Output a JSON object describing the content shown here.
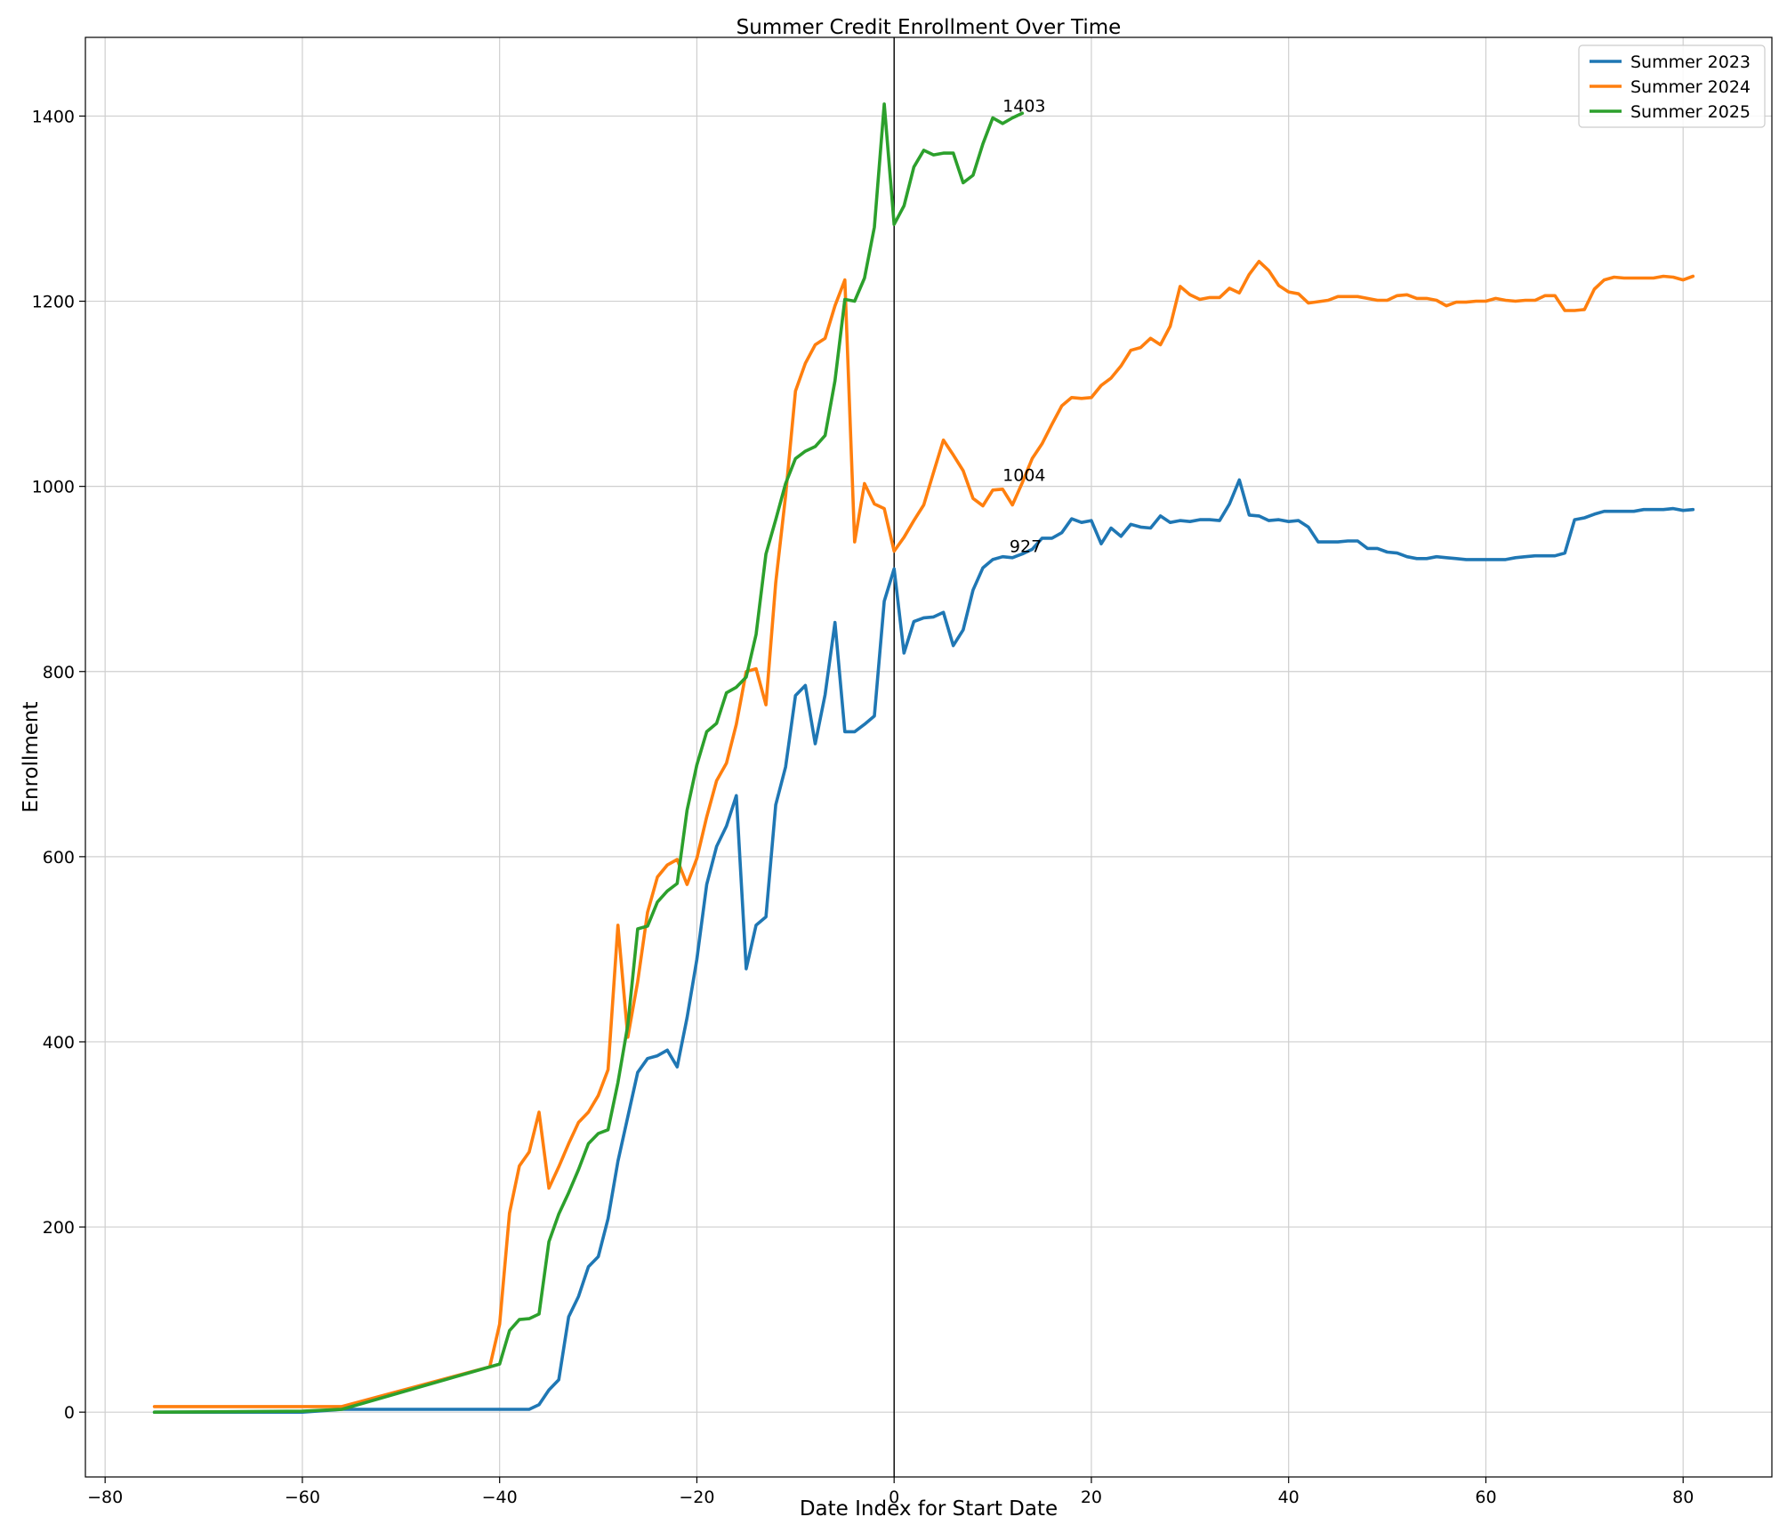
{
  "chart_data": {
    "type": "line",
    "title": "Summer Credit Enrollment Over Time",
    "xlabel": "Date Index for Start Date",
    "ylabel": "Enrollment",
    "xlim": [
      -82,
      89
    ],
    "ylim": [
      -70,
      1485
    ],
    "xticks": [
      -80,
      -60,
      -40,
      -20,
      0,
      20,
      40,
      60,
      80
    ],
    "yticks": [
      0,
      200,
      400,
      600,
      800,
      1000,
      1200,
      1400
    ],
    "grid": true,
    "vline_x": 0,
    "legend_position": "top-right",
    "series": [
      {
        "name": "Summer 2023",
        "color": "#1f77b4",
        "points": [
          [
            -75,
            0
          ],
          [
            -60,
            0
          ],
          [
            -56,
            3
          ],
          [
            -40,
            3
          ],
          [
            -37,
            3
          ],
          [
            -36,
            8
          ],
          [
            -35,
            24
          ],
          [
            -34,
            35
          ],
          [
            -33,
            103
          ],
          [
            -32,
            125
          ],
          [
            -31,
            157
          ],
          [
            -30,
            168
          ],
          [
            -29,
            209
          ],
          [
            -28,
            271
          ],
          [
            -27,
            319
          ],
          [
            -26,
            367
          ],
          [
            -25,
            382
          ],
          [
            -24,
            385
          ],
          [
            -23,
            391
          ],
          [
            -22,
            373
          ],
          [
            -21,
            426
          ],
          [
            -20,
            489
          ],
          [
            -19,
            570
          ],
          [
            -18,
            611
          ],
          [
            -17,
            633
          ],
          [
            -16,
            666
          ],
          [
            -15,
            479
          ],
          [
            -14,
            526
          ],
          [
            -13,
            535
          ],
          [
            -12,
            656
          ],
          [
            -11,
            697
          ],
          [
            -10,
            774
          ],
          [
            -9,
            785
          ],
          [
            -8,
            722
          ],
          [
            -7,
            775
          ],
          [
            -6,
            853
          ],
          [
            -5,
            735
          ],
          [
            -4,
            735
          ],
          [
            -3,
            743
          ],
          [
            -2,
            752
          ],
          [
            -1,
            876
          ],
          [
            0,
            911
          ],
          [
            1,
            820
          ],
          [
            2,
            854
          ],
          [
            3,
            858
          ],
          [
            4,
            859
          ],
          [
            5,
            864
          ],
          [
            6,
            828
          ],
          [
            7,
            845
          ],
          [
            8,
            888
          ],
          [
            9,
            912
          ],
          [
            10,
            921
          ],
          [
            11,
            924
          ],
          [
            12,
            923
          ],
          [
            13,
            927
          ],
          [
            14,
            932
          ],
          [
            15,
            944
          ],
          [
            16,
            944
          ],
          [
            17,
            950
          ],
          [
            18,
            965
          ],
          [
            19,
            961
          ],
          [
            20,
            963
          ],
          [
            21,
            938
          ],
          [
            22,
            955
          ],
          [
            23,
            946
          ],
          [
            24,
            959
          ],
          [
            25,
            956
          ],
          [
            26,
            955
          ],
          [
            27,
            968
          ],
          [
            28,
            961
          ],
          [
            29,
            963
          ],
          [
            30,
            962
          ],
          [
            31,
            964
          ],
          [
            32,
            964
          ],
          [
            33,
            963
          ],
          [
            34,
            981
          ],
          [
            35,
            1007
          ],
          [
            36,
            969
          ],
          [
            37,
            968
          ],
          [
            38,
            963
          ],
          [
            39,
            964
          ],
          [
            40,
            962
          ],
          [
            41,
            963
          ],
          [
            42,
            956
          ],
          [
            43,
            940
          ],
          [
            45,
            940
          ],
          [
            46,
            941
          ],
          [
            47,
            941
          ],
          [
            48,
            933
          ],
          [
            49,
            933
          ],
          [
            50,
            929
          ],
          [
            51,
            928
          ],
          [
            52,
            924
          ],
          [
            53,
            922
          ],
          [
            54,
            922
          ],
          [
            55,
            924
          ],
          [
            56,
            923
          ],
          [
            57,
            922
          ],
          [
            58,
            921
          ],
          [
            62,
            921
          ],
          [
            63,
            923
          ],
          [
            64,
            924
          ],
          [
            65,
            925
          ],
          [
            67,
            925
          ],
          [
            68,
            928
          ],
          [
            69,
            964
          ],
          [
            70,
            966
          ],
          [
            71,
            970
          ],
          [
            72,
            973
          ],
          [
            75,
            973
          ],
          [
            76,
            975
          ],
          [
            78,
            975
          ],
          [
            79,
            976
          ],
          [
            80,
            974
          ],
          [
            81,
            975
          ]
        ]
      },
      {
        "name": "Summer 2024",
        "color": "#ff7f0e",
        "points": [
          [
            -75,
            6
          ],
          [
            -56,
            6
          ],
          [
            -41,
            49
          ],
          [
            -40,
            95
          ],
          [
            -39,
            215
          ],
          [
            -38,
            266
          ],
          [
            -37,
            281
          ],
          [
            -36,
            324
          ],
          [
            -35,
            242
          ],
          [
            -34,
            265
          ],
          [
            -33,
            290
          ],
          [
            -32,
            313
          ],
          [
            -31,
            324
          ],
          [
            -30,
            342
          ],
          [
            -29,
            370
          ],
          [
            -28,
            526
          ],
          [
            -27,
            405
          ],
          [
            -26,
            465
          ],
          [
            -25,
            540
          ],
          [
            -24,
            578
          ],
          [
            -23,
            591
          ],
          [
            -22,
            597
          ],
          [
            -21,
            570
          ],
          [
            -20,
            598
          ],
          [
            -19,
            643
          ],
          [
            -18,
            682
          ],
          [
            -17,
            701
          ],
          [
            -16,
            743
          ],
          [
            -15,
            800
          ],
          [
            -14,
            803
          ],
          [
            -13,
            764
          ],
          [
            -12,
            896
          ],
          [
            -11,
            990
          ],
          [
            -10,
            1103
          ],
          [
            -9,
            1133
          ],
          [
            -8,
            1153
          ],
          [
            -7,
            1160
          ],
          [
            -6,
            1195
          ],
          [
            -5,
            1223
          ],
          [
            -4,
            940
          ],
          [
            -3,
            1003
          ],
          [
            -2,
            981
          ],
          [
            -1,
            976
          ],
          [
            0,
            930
          ],
          [
            1,
            945
          ],
          [
            2,
            963
          ],
          [
            3,
            980
          ],
          [
            4,
            1015
          ],
          [
            5,
            1050
          ],
          [
            6,
            1034
          ],
          [
            7,
            1017
          ],
          [
            8,
            987
          ],
          [
            9,
            979
          ],
          [
            10,
            996
          ],
          [
            11,
            997
          ],
          [
            12,
            980
          ],
          [
            13,
            1004
          ],
          [
            14,
            1030
          ],
          [
            15,
            1046
          ],
          [
            16,
            1067
          ],
          [
            17,
            1087
          ],
          [
            18,
            1096
          ],
          [
            19,
            1095
          ],
          [
            20,
            1096
          ],
          [
            21,
            1109
          ],
          [
            22,
            1117
          ],
          [
            23,
            1130
          ],
          [
            24,
            1147
          ],
          [
            25,
            1150
          ],
          [
            26,
            1160
          ],
          [
            27,
            1153
          ],
          [
            28,
            1173
          ],
          [
            29,
            1216
          ],
          [
            30,
            1207
          ],
          [
            31,
            1202
          ],
          [
            32,
            1204
          ],
          [
            33,
            1204
          ],
          [
            34,
            1214
          ],
          [
            35,
            1209
          ],
          [
            36,
            1229
          ],
          [
            37,
            1243
          ],
          [
            38,
            1233
          ],
          [
            39,
            1217
          ],
          [
            40,
            1210
          ],
          [
            41,
            1208
          ],
          [
            42,
            1198
          ],
          [
            44,
            1201
          ],
          [
            45,
            1205
          ],
          [
            47,
            1205
          ],
          [
            48,
            1203
          ],
          [
            49,
            1201
          ],
          [
            50,
            1201
          ],
          [
            51,
            1206
          ],
          [
            52,
            1207
          ],
          [
            53,
            1203
          ],
          [
            54,
            1203
          ],
          [
            55,
            1201
          ],
          [
            56,
            1195
          ],
          [
            57,
            1199
          ],
          [
            58,
            1199
          ],
          [
            59,
            1200
          ],
          [
            60,
            1200
          ],
          [
            61,
            1203
          ],
          [
            62,
            1201
          ],
          [
            63,
            1200
          ],
          [
            64,
            1201
          ],
          [
            65,
            1201
          ],
          [
            66,
            1206
          ],
          [
            67,
            1206
          ],
          [
            68,
            1190
          ],
          [
            69,
            1190
          ],
          [
            70,
            1191
          ],
          [
            71,
            1213
          ],
          [
            72,
            1223
          ],
          [
            73,
            1226
          ],
          [
            74,
            1225
          ],
          [
            77,
            1225
          ],
          [
            78,
            1227
          ],
          [
            79,
            1226
          ],
          [
            80,
            1223
          ],
          [
            81,
            1227
          ]
        ]
      },
      {
        "name": "Summer 2025",
        "color": "#2ca02c",
        "points": [
          [
            -75,
            0
          ],
          [
            -60,
            1
          ],
          [
            -56,
            3
          ],
          [
            -40,
            52
          ],
          [
            -39,
            88
          ],
          [
            -38,
            100
          ],
          [
            -37,
            101
          ],
          [
            -36,
            106
          ],
          [
            -35,
            184
          ],
          [
            -34,
            214
          ],
          [
            -33,
            237
          ],
          [
            -32,
            262
          ],
          [
            -31,
            290
          ],
          [
            -30,
            301
          ],
          [
            -29,
            305
          ],
          [
            -28,
            356
          ],
          [
            -27,
            418
          ],
          [
            -26,
            522
          ],
          [
            -25,
            525
          ],
          [
            -24,
            551
          ],
          [
            -23,
            563
          ],
          [
            -22,
            571
          ],
          [
            -21,
            650
          ],
          [
            -20,
            699
          ],
          [
            -19,
            735
          ],
          [
            -18,
            744
          ],
          [
            -17,
            777
          ],
          [
            -16,
            783
          ],
          [
            -15,
            794
          ],
          [
            -14,
            840
          ],
          [
            -13,
            927
          ],
          [
            -12,
            964
          ],
          [
            -11,
            1003
          ],
          [
            -10,
            1030
          ],
          [
            -9,
            1038
          ],
          [
            -8,
            1043
          ],
          [
            -7,
            1055
          ],
          [
            -6,
            1114
          ],
          [
            -5,
            1202
          ],
          [
            -4,
            1200
          ],
          [
            -3,
            1225
          ],
          [
            -2,
            1280
          ],
          [
            -1,
            1413
          ],
          [
            0,
            1283
          ],
          [
            1,
            1303
          ],
          [
            2,
            1345
          ],
          [
            3,
            1363
          ],
          [
            4,
            1358
          ],
          [
            5,
            1360
          ],
          [
            6,
            1360
          ],
          [
            7,
            1328
          ],
          [
            8,
            1336
          ],
          [
            9,
            1370
          ],
          [
            10,
            1398
          ],
          [
            11,
            1392
          ],
          [
            12,
            1398
          ],
          [
            13,
            1403
          ]
        ]
      }
    ],
    "annotations": [
      {
        "x": 11,
        "y": 1403,
        "text": "1403"
      },
      {
        "x": 11,
        "y": 1004,
        "text": "1004"
      },
      {
        "x": 11.7,
        "y": 927,
        "text": "927"
      }
    ]
  }
}
